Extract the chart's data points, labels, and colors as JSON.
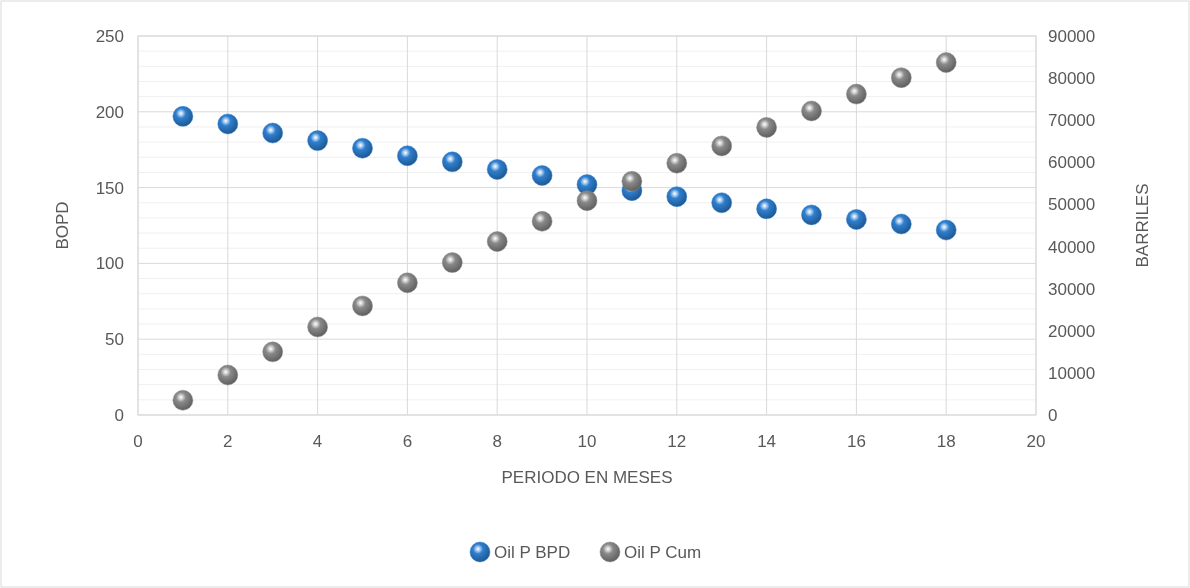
{
  "chart_data": {
    "type": "scatter",
    "xlabel": "PERIODO EN MESES",
    "ylabel": "BOPD",
    "y2label": "BARRILES",
    "x": [
      1,
      2,
      3,
      4,
      5,
      6,
      7,
      8,
      9,
      10,
      11,
      12,
      13,
      14,
      15,
      16,
      17,
      18
    ],
    "series": [
      {
        "name": "Oil P BPD",
        "color": "#2e7fd0",
        "values": [
          197,
          192,
          186,
          181,
          176,
          171,
          167,
          162,
          158,
          152,
          148,
          144,
          140,
          136,
          132,
          129,
          126,
          122
        ]
      },
      {
        "name": "Oil P Cum",
        "color": "#8a8a8a",
        "axis": "y2",
        "values": [
          3500,
          9500,
          15000,
          20900,
          25900,
          31400,
          36200,
          41200,
          46000,
          50900,
          55500,
          59800,
          63900,
          68300,
          72200,
          76200,
          80100,
          83700
        ]
      }
    ],
    "xlim": [
      0,
      20
    ],
    "xticks": [
      0,
      2,
      4,
      6,
      8,
      10,
      12,
      14,
      16,
      18,
      20
    ],
    "ylim": [
      0,
      250
    ],
    "yticks": [
      0,
      50,
      100,
      150,
      200,
      250
    ],
    "y2lim": [
      0,
      90000
    ],
    "y2ticks": [
      0,
      10000,
      20000,
      30000,
      40000,
      50000,
      60000,
      70000,
      80000,
      90000
    ],
    "grid": true,
    "legend": "bottom",
    "marker": "circle"
  }
}
